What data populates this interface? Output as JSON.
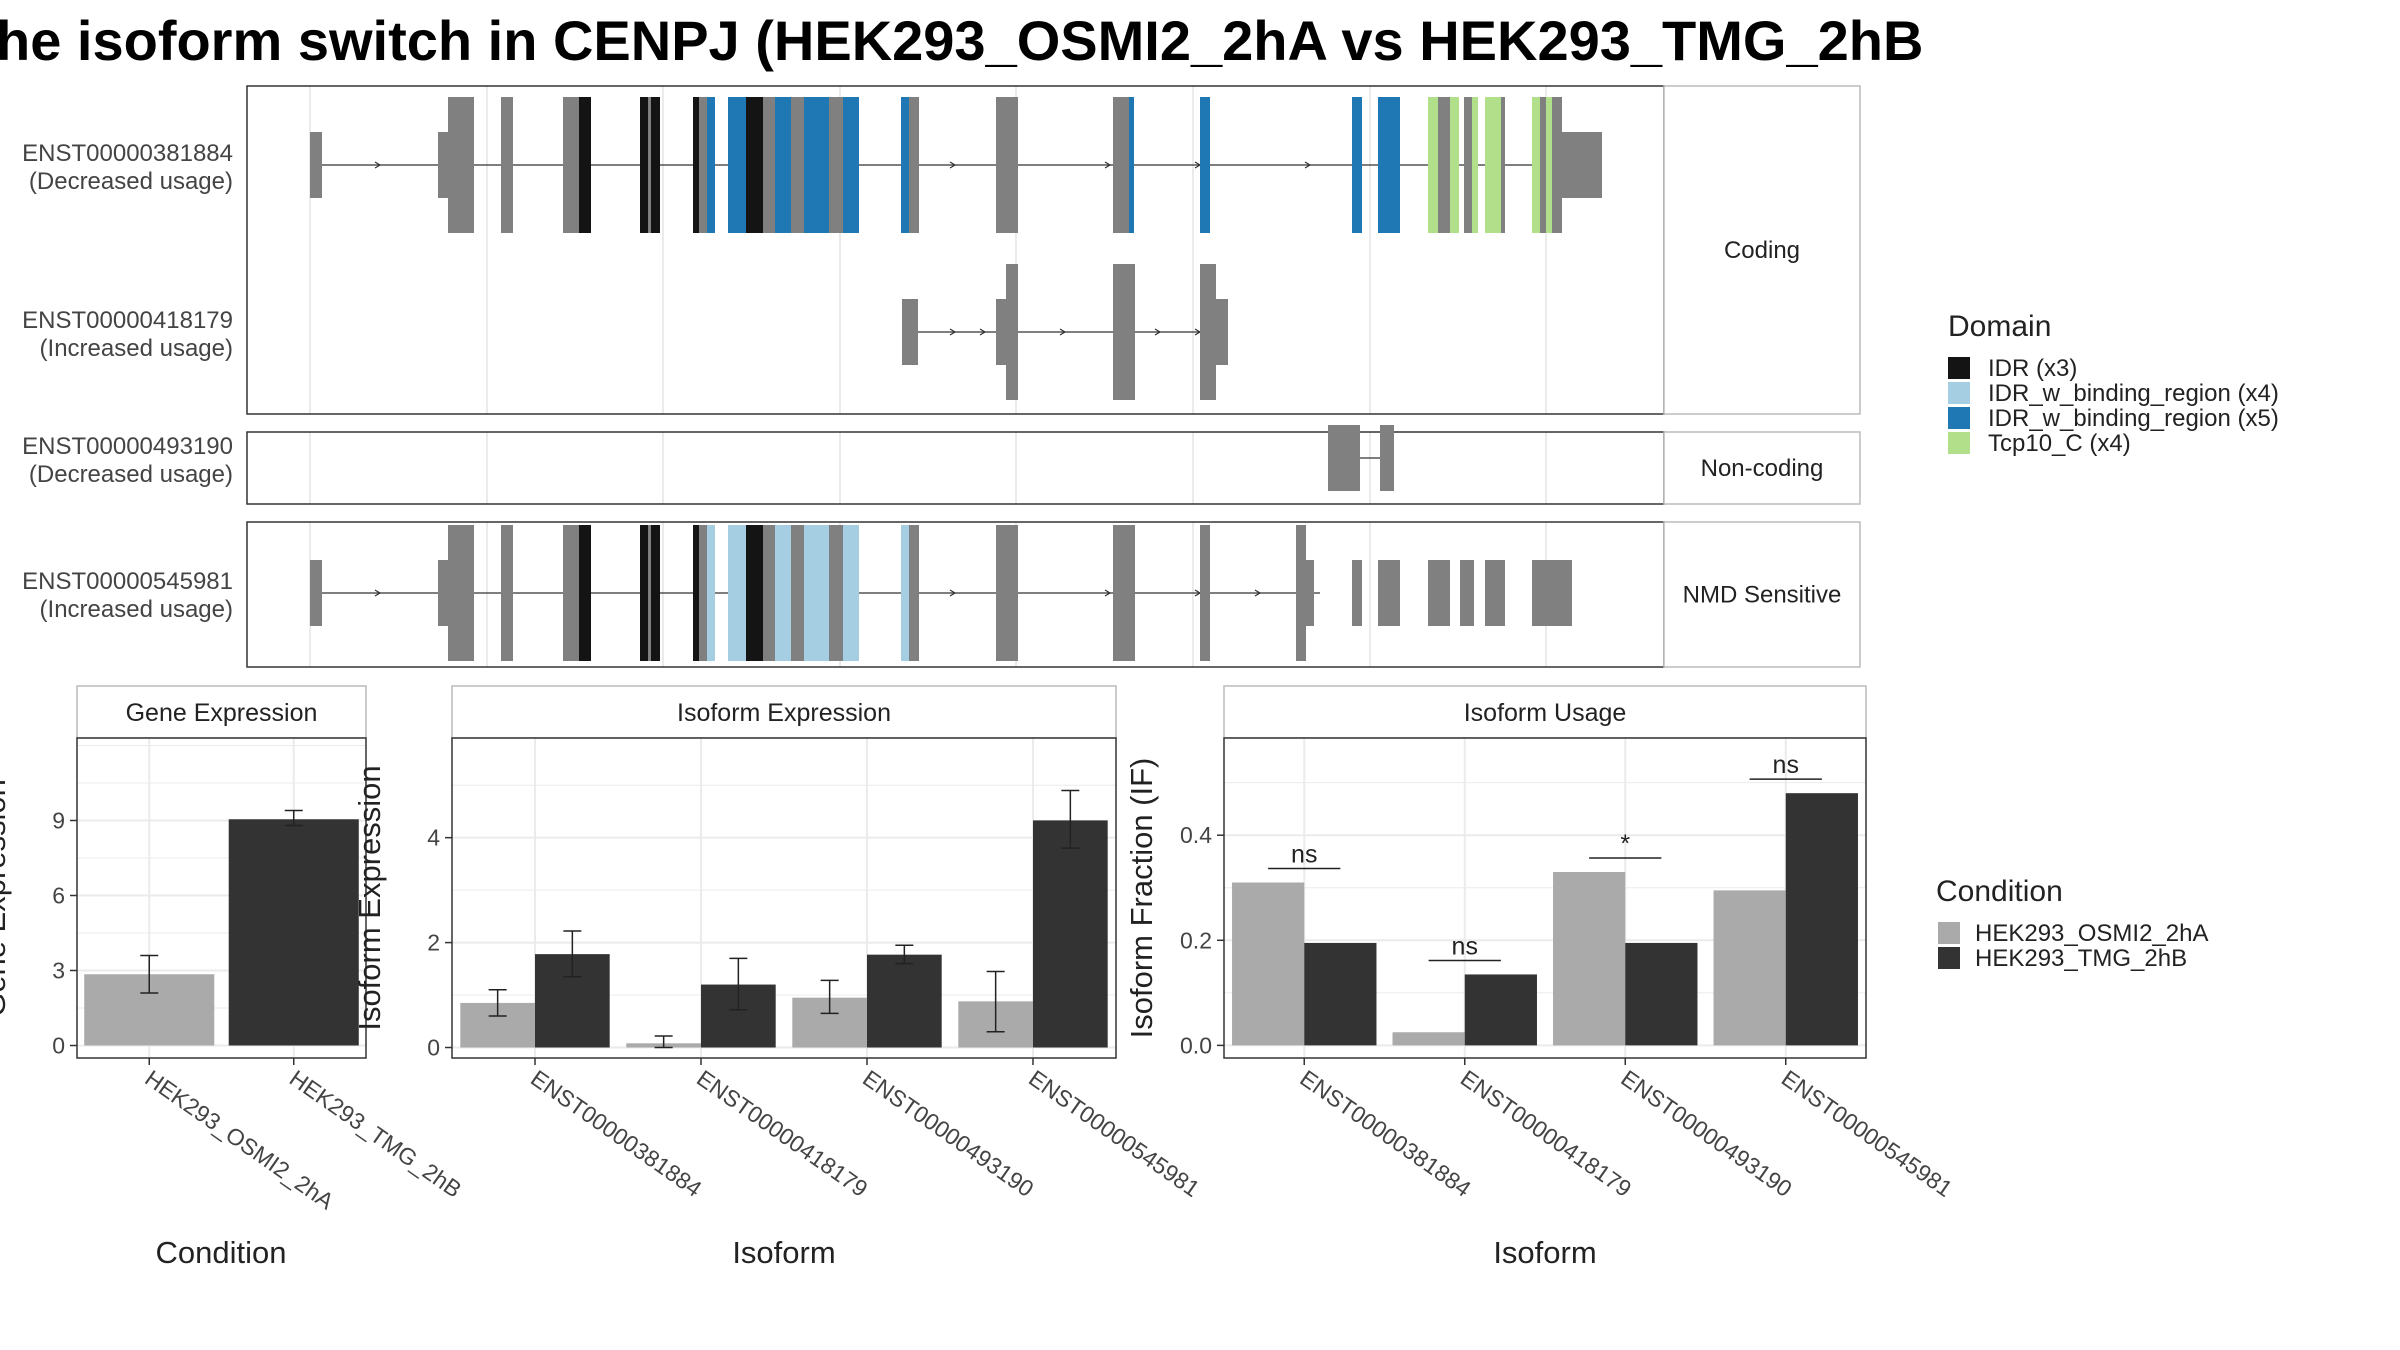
{
  "title": "he isoform switch in CENPJ (HEK293_OSMI2_2hA vs HEK293_TMG_2hB",
  "colors": {
    "exon": "#808080",
    "IDR": "#141414",
    "IDR_w_binding_region_x4": "#a6cee3",
    "IDR_w_binding_region_x5": "#1f78b4",
    "Tcp10_C": "#b2df8a",
    "cond1": "#aaaaaa",
    "cond2": "#333333"
  },
  "chart_data": [
    {
      "type": "gene-structure",
      "legend_title": "Domain",
      "legend_placement": "right",
      "domains": [
        {
          "label": "IDR (x3)",
          "color_key": "IDR"
        },
        {
          "label": "IDR_w_binding_region (x4)",
          "color_key": "IDR_w_binding_region_x4"
        },
        {
          "label": "IDR_w_binding_region (x5)",
          "color_key": "IDR_w_binding_region_x5"
        },
        {
          "label": "Tcp10_C (x4)",
          "color_key": "Tcp10_C"
        }
      ],
      "facets": [
        {
          "label": "Coding",
          "rows": 2
        },
        {
          "label": "Non-coding",
          "rows": 1
        },
        {
          "label": "NMD Sensitive",
          "rows": 1
        }
      ],
      "transcripts": [
        {
          "id": "ENST00000381884",
          "usage": "(Decreased usage)",
          "facet": 0
        },
        {
          "id": "ENST00000418179",
          "usage": "(Increased usage)",
          "facet": 0
        },
        {
          "id": "ENST00000493190",
          "usage": "(Decreased usage)",
          "facet": 1
        },
        {
          "id": "ENST00000545981",
          "usage": "(Increased usage)",
          "facet": 2
        }
      ]
    },
    {
      "type": "bar",
      "title": "Gene Expression",
      "xlabel": "Condition",
      "ylabel": "Gene Expression",
      "categories": [
        "HEK293_OSMI2_2hA",
        "HEK293_TMG_2hB"
      ],
      "values": [
        2.85,
        9.05
      ],
      "errors": [
        [
          2.1,
          3.6
        ],
        [
          8.8,
          9.4
        ]
      ],
      "ylim": [
        -0.5,
        12.3
      ],
      "yticks": [
        0,
        3,
        6,
        9
      ],
      "grid": true
    },
    {
      "type": "bar",
      "title": "Isoform Expression",
      "xlabel": "Isoform",
      "ylabel": "Isoform Expression",
      "categories": [
        "ENST00000381884",
        "ENST00000418179",
        "ENST00000493190",
        "ENST00000545981"
      ],
      "series": [
        {
          "name": "HEK293_OSMI2_2hA",
          "values": [
            0.85,
            0.08,
            0.95,
            0.88
          ],
          "errors": [
            [
              0.6,
              1.1
            ],
            [
              0.0,
              0.22
            ],
            [
              0.65,
              1.28
            ],
            [
              0.3,
              1.45
            ]
          ]
        },
        {
          "name": "HEK293_TMG_2hB",
          "values": [
            1.78,
            1.2,
            1.77,
            4.33
          ],
          "errors": [
            [
              1.35,
              2.22
            ],
            [
              0.72,
              1.7
            ],
            [
              1.6,
              1.95
            ],
            [
              3.8,
              4.9
            ]
          ]
        }
      ],
      "ylim": [
        -0.2,
        5.9
      ],
      "yticks": [
        0,
        2,
        4
      ],
      "grid": true
    },
    {
      "type": "bar",
      "title": "Isoform Usage",
      "xlabel": "Isoform",
      "ylabel": "Isoform Fraction (IF)",
      "categories": [
        "ENST00000381884",
        "ENST00000418179",
        "ENST00000493190",
        "ENST00000545981"
      ],
      "series": [
        {
          "name": "HEK293_OSMI2_2hA",
          "values": [
            0.31,
            0.025,
            0.33,
            0.295
          ]
        },
        {
          "name": "HEK293_TMG_2hB",
          "values": [
            0.195,
            0.135,
            0.195,
            0.48
          ]
        }
      ],
      "significance": [
        "ns",
        "ns",
        "*",
        "ns"
      ],
      "ylim": [
        -0.024,
        0.585
      ],
      "yticks": [
        0.0,
        0.2,
        0.4
      ],
      "grid": true
    }
  ],
  "condition_legend": {
    "title": "Condition",
    "placement": "right",
    "items": [
      "HEK293_OSMI2_2hA",
      "HEK293_TMG_2hB"
    ]
  }
}
